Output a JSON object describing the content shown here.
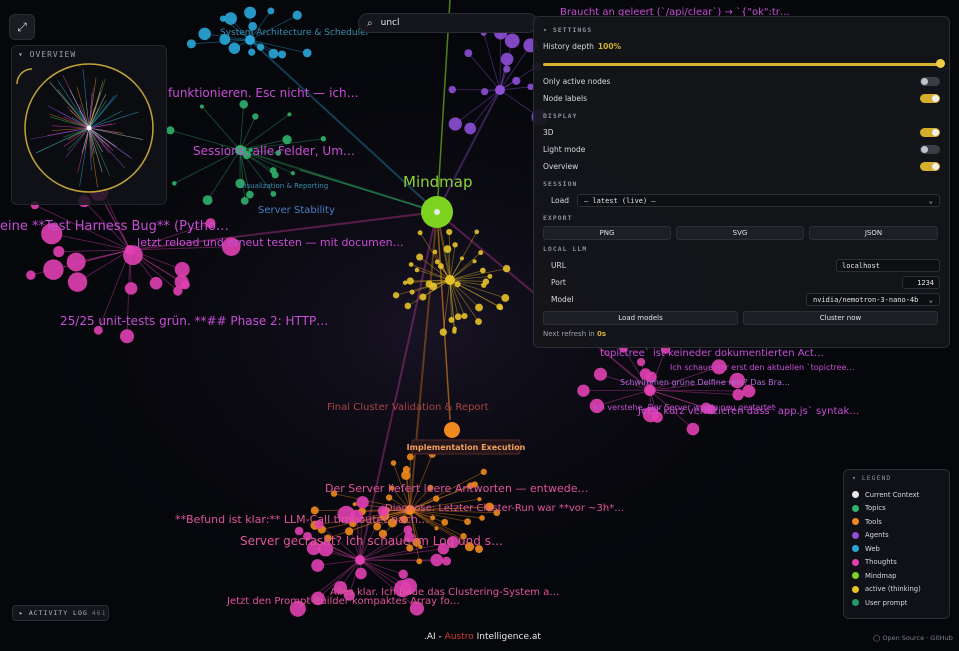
{
  "search": {
    "value": "uncl",
    "placeholder": ""
  },
  "overview": {
    "title": "OVERVIEW"
  },
  "settings": {
    "title": "SETTINGS",
    "history_depth_label": "History depth",
    "history_depth_value": "100%",
    "history_depth_fraction": 1.0,
    "only_active_nodes": {
      "label": "Only active nodes",
      "on": false
    },
    "node_labels": {
      "label": "Node labels",
      "on": true
    },
    "display_title": "DISPLAY",
    "three_d": {
      "label": "3D",
      "on": true
    },
    "light_mode": {
      "label": "Light mode",
      "on": false
    },
    "overview_toggle": {
      "label": "Overview",
      "on": true
    },
    "session_title": "SESSION",
    "load_label": "Load",
    "load_value": "— latest (live) —",
    "export_title": "EXPORT",
    "export_buttons": [
      "PNG",
      "SVG",
      "JSON"
    ],
    "local_llm_title": "LOCAL LLM",
    "url_label": "URL",
    "url_value": "localhost",
    "port_label": "Port",
    "port_value": "1234",
    "model_label": "Model",
    "model_value": "nvidia/nemotron-3-nano-4b",
    "load_models_label": "Load models",
    "cluster_now_label": "Cluster now",
    "next_refresh_label": "Next refresh in",
    "next_refresh_value": "0s"
  },
  "legend": {
    "title": "LEGEND",
    "items": [
      {
        "label": "Current Context",
        "color": "#e8e8e8"
      },
      {
        "label": "Topics",
        "color": "#2fb36b"
      },
      {
        "label": "Tools",
        "color": "#f08a1c"
      },
      {
        "label": "Agents",
        "color": "#8e4fd6"
      },
      {
        "label": "Web",
        "color": "#2aa7d8"
      },
      {
        "label": "Thoughts",
        "color": "#e040b0"
      },
      {
        "label": "Mindmap",
        "color": "#7ed321"
      },
      {
        "label": "active (thinking)",
        "color": "#e6c229"
      },
      {
        "label": "User prompt",
        "color": "#1f9c6a"
      }
    ]
  },
  "activity_log": {
    "label": "ACTIVITY LOG",
    "count": "461"
  },
  "brand": {
    "prefix": ".AI",
    "sep": " - ",
    "red": "Austro",
    "suffix": " Intelligence",
    "tld": ".at"
  },
  "footer_link": "Open Source · GitHub",
  "graph": {
    "hub_label": "Mindmap",
    "tooltip": "Implementation Execution",
    "cluster_labels": [
      "Final Cluster Validation & Report",
      "Server Stability",
      "System Architecture & Scheduler",
      "Visualization & Reporting"
    ],
    "thought_labels": [
      "Jetzt reload und erneut testen — mit documen…",
      "Sessions, alle Felder, Um…",
      "25/25 unit-tests grün. **## Phase 2: HTTP…",
      "topictree` ist keineder dokumentierten Act…",
      "Ich schaue mir erst den aktuellen `topictree…",
      "Schwimmen grüne Delfine rein? Das Bra…",
      "Jetzt kurz verifizieren dass `app.js` syntak…",
      "Ich verstehe. Der Server wurde neu gestartet",
      "Der Server liefert leere Antworten — entwede…",
      "Diagnose: Letzter Cluster-Run war **vor ~3h*…",
      "**Befund ist klar:** LLM-Call timeoutet nach…",
      "Server gecrasht? Ich schaue im Log und s…",
      "Alles klar. Ich baue das Clustering-System a…",
      "Jetzt den Prompt-Builder kompaktes Array fo…",
      "eine **Test Harness Bug** (Pytho…",
      "funktionieren. Esc nicht — ich…",
      "Braucht an geleert (`/api/clear`) → `{\"ok\":tr…"
    ]
  }
}
